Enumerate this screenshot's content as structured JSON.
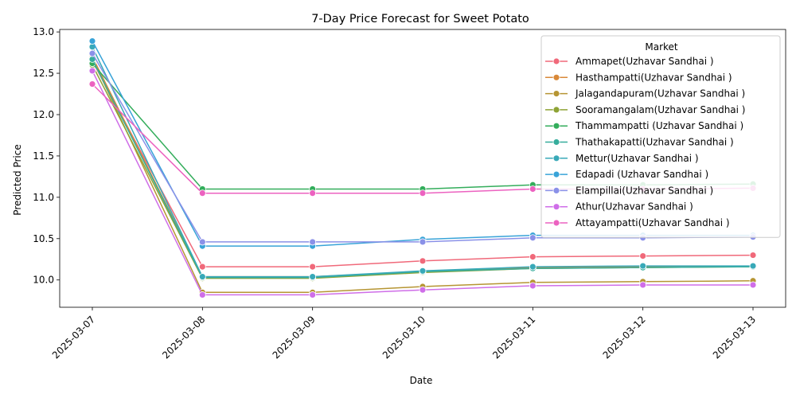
{
  "chart_data": {
    "type": "line",
    "title": "7-Day Price Forecast for Sweet Potato",
    "xlabel": "Date",
    "ylabel": "Predicted Price",
    "x": [
      "2025-03-07",
      "2025-03-08",
      "2025-03-09",
      "2025-03-10",
      "2025-03-11",
      "2025-03-12",
      "2025-03-13"
    ],
    "yticks": [
      "10.0",
      "10.5",
      "11.0",
      "11.5",
      "12.0",
      "12.5",
      "13.0"
    ],
    "ylim": [
      9.67,
      13.03
    ],
    "grid": false,
    "legend": {
      "title": "Market",
      "placement": "top-right"
    },
    "series": [
      {
        "name": "Ammapet(Uzhavar Sandhai )",
        "color": "#f0697a",
        "values": [
          12.65,
          10.16,
          10.16,
          10.23,
          10.28,
          10.29,
          10.3
        ]
      },
      {
        "name": "Hasthampatti(Uzhavar Sandhai )",
        "color": "#d98938",
        "values": [
          12.7,
          10.04,
          10.04,
          10.1,
          10.15,
          10.16,
          10.16
        ]
      },
      {
        "name": "Jalagandapuram(Uzhavar Sandhai )",
        "color": "#b69533",
        "values": [
          12.68,
          9.85,
          9.85,
          9.92,
          9.97,
          9.98,
          9.99
        ]
      },
      {
        "name": "Sooramangalam(Uzhavar Sandhai )",
        "color": "#8ea335",
        "values": [
          12.6,
          10.02,
          10.02,
          10.09,
          10.14,
          10.15,
          10.16
        ]
      },
      {
        "name": "Thammampatti (Uzhavar Sandhai )",
        "color": "#33ad5b",
        "values": [
          12.62,
          11.1,
          11.1,
          11.1,
          11.15,
          11.15,
          11.16
        ]
      },
      {
        "name": "Thathakapatti(Uzhavar Sandhai )",
        "color": "#36ad9c",
        "values": [
          12.67,
          10.03,
          10.03,
          10.1,
          10.14,
          10.15,
          10.16
        ]
      },
      {
        "name": "Mettur(Uzhavar Sandhai )",
        "color": "#38a9b8",
        "values": [
          12.82,
          10.04,
          10.04,
          10.11,
          10.16,
          10.17,
          10.17
        ]
      },
      {
        "name": "Edapadi (Uzhavar Sandhai )",
        "color": "#38a3d8",
        "values": [
          12.89,
          10.41,
          10.41,
          10.49,
          10.54,
          10.54,
          10.54
        ]
      },
      {
        "name": "Elampillai(Uzhavar Sandhai )",
        "color": "#8a91e8",
        "values": [
          12.74,
          10.46,
          10.46,
          10.46,
          10.51,
          10.51,
          10.52
        ]
      },
      {
        "name": "Athur(Uzhavar Sandhai )",
        "color": "#cf6ee8",
        "values": [
          12.53,
          9.82,
          9.82,
          9.88,
          9.93,
          9.94,
          9.94
        ]
      },
      {
        "name": "Attayampatti(Uzhavar Sandhai )",
        "color": "#ec62c0",
        "values": [
          12.37,
          11.05,
          11.05,
          11.05,
          11.1,
          11.1,
          11.11
        ]
      }
    ]
  }
}
